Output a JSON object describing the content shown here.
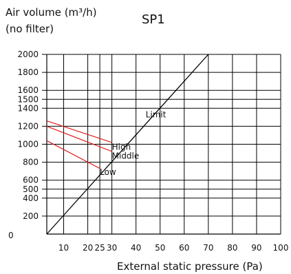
{
  "chart_data": {
    "type": "line",
    "title": "SP1",
    "ylabel_line1": "Air volume (m³/h)",
    "ylabel_line2": "(no filter)",
    "xlabel": "External static pressure (Pa)",
    "xlim": [
      3,
      100
    ],
    "ylim": [
      0,
      2000
    ],
    "grid": true,
    "x_ticks": [
      10,
      20,
      25,
      30,
      40,
      50,
      60,
      70,
      80,
      90,
      100
    ],
    "x_tick_labels": [
      "10",
      "20",
      "25",
      "30",
      "40",
      "50",
      "60",
      "70",
      "80",
      "90",
      "100"
    ],
    "y_ticks": [
      200,
      400,
      500,
      600,
      800,
      1000,
      1200,
      1400,
      1500,
      1600,
      1800,
      2000
    ],
    "y_tick_labels": [
      "200",
      "400",
      "500",
      "600",
      "800",
      "1000",
      "1200",
      "1400",
      "1500",
      "1600",
      "1800",
      "2000"
    ],
    "y_zero_label": "0",
    "series": [
      {
        "name": "Limit",
        "color": "#000000",
        "x": [
          3,
          70
        ],
        "y": [
          0,
          2000
        ]
      },
      {
        "name": "High",
        "color": "#e02020",
        "x": [
          3,
          30
        ],
        "y": [
          1260,
          1020
        ]
      },
      {
        "name": "Middle",
        "color": "#e02020",
        "x": [
          3,
          30
        ],
        "y": [
          1200,
          920
        ]
      },
      {
        "name": "Low",
        "color": "#e02020",
        "x": [
          3,
          25
        ],
        "y": [
          1040,
          730
        ]
      }
    ],
    "annotations": [
      {
        "text": "Limit",
        "x": 44,
        "y": 1300
      },
      {
        "text": "High",
        "x": 30,
        "y": 940
      },
      {
        "text": "Middle",
        "x": 30,
        "y": 840
      },
      {
        "text": "Low",
        "x": 25,
        "y": 660
      }
    ]
  }
}
